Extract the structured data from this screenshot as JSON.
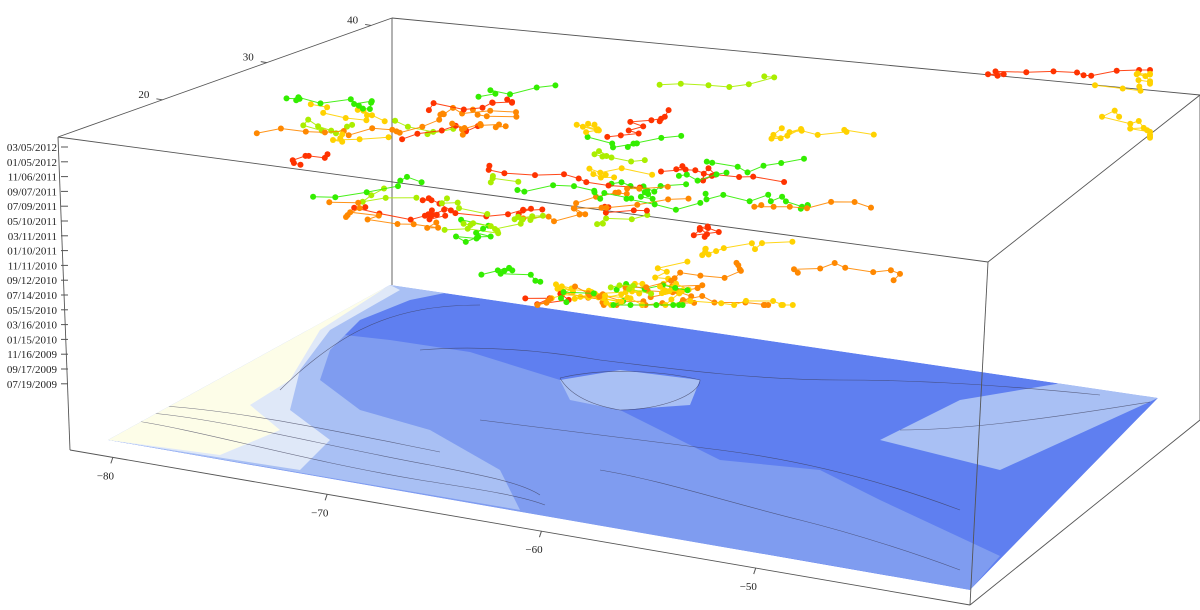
{
  "chart_data": {
    "type": "scatter",
    "projection": "3d",
    "title": "",
    "xlabel": "",
    "ylabel": "",
    "zlabel": "",
    "x_axis": {
      "range": [
        -82,
        -40
      ],
      "ticks": [
        -80,
        -70,
        -60,
        -50
      ]
    },
    "y_axis": {
      "range": [
        10,
        42
      ],
      "ticks": [
        20,
        30,
        40
      ]
    },
    "z_axis": {
      "range": [
        "2009-06-01",
        "2012-04-15"
      ],
      "ticks": [
        "07/19/2009",
        "09/17/2009",
        "11/16/2009",
        "01/15/2010",
        "03/16/2010",
        "05/15/2010",
        "07/14/2010",
        "09/12/2010",
        "11/11/2010",
        "01/10/2011",
        "03/11/2011",
        "05/10/2011",
        "07/09/2011",
        "09/07/2011",
        "11/06/2011",
        "01/05/2012",
        "03/05/2012"
      ]
    },
    "base_surface": {
      "type": "contour",
      "colors": [
        "#fdfde8",
        "#dfe8f8",
        "#a9c0f4",
        "#7f9cf0",
        "#5f7ff0"
      ]
    },
    "track_colors": [
      "#ff3300",
      "#ff8800",
      "#ffd200",
      "#aaee00",
      "#33ee00"
    ],
    "grid": false,
    "legend": "none"
  }
}
